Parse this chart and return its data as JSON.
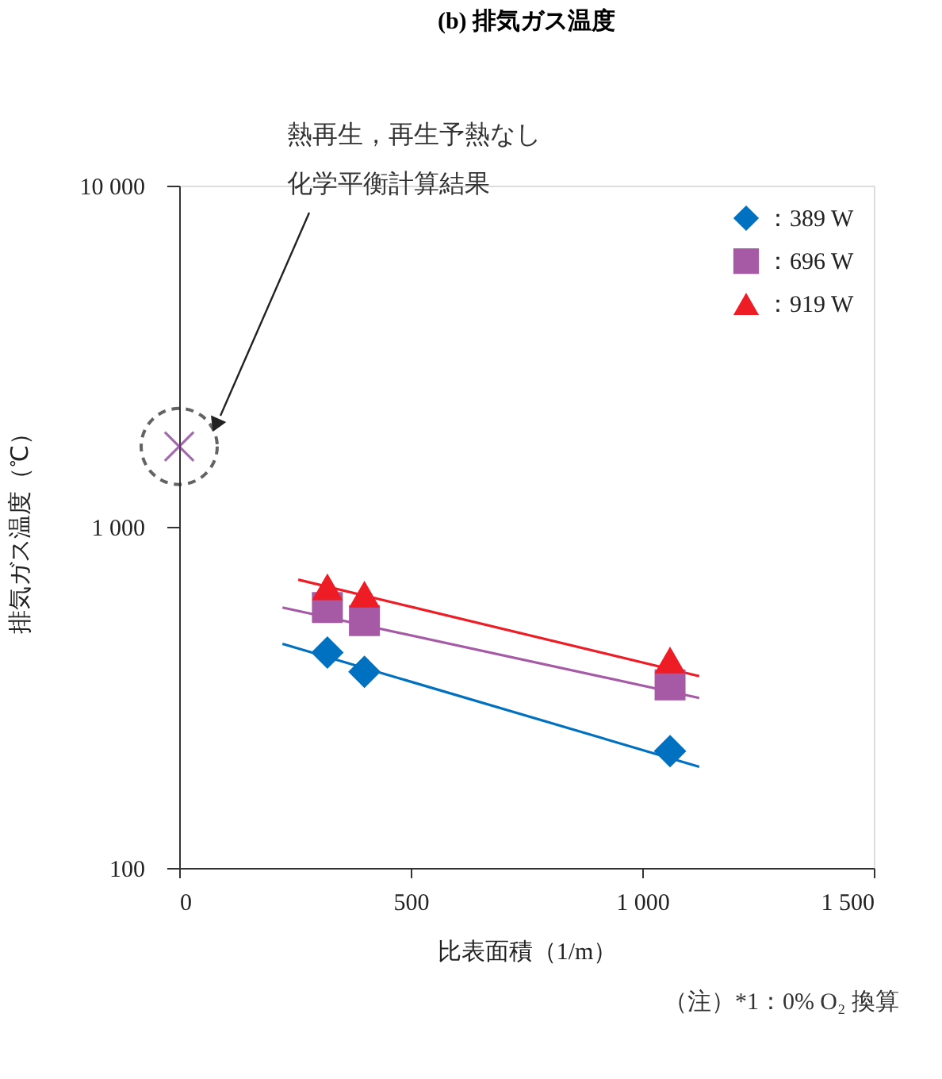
{
  "chart_data": {
    "type": "scatter",
    "title": "(b) 排気ガス温度",
    "xlabel": "比表面積（1/m）",
    "ylabel": "排気ガス温度（℃）",
    "log": "y",
    "xlim": [
      0,
      1500
    ],
    "xticks": [
      0,
      500,
      {
        "value": 1000,
        "label": "1 000"
      },
      {
        "value": 1500,
        "label": "1 500"
      }
    ],
    "ylim": [
      100,
      10000
    ],
    "yticks": [
      100,
      {
        "value": 1000,
        "label": "1 000"
      },
      {
        "value": 10000,
        "label": "10 000"
      }
    ],
    "grid": false,
    "legend": "top right",
    "series": [
      {
        "name": "：389 W",
        "color": "#0070c0",
        "marker": "diamond",
        "x": [
          320,
          400,
          1060
        ],
        "values": [
          428,
          376,
          220
        ]
      },
      {
        "name": "：696 W",
        "color": "#a65aa6",
        "marker": "square",
        "x": [
          320,
          400,
          1060
        ],
        "values": [
          580,
          531,
          344
        ]
      },
      {
        "name": "：919 W",
        "color": "#ee1c25",
        "marker": "triangle",
        "x": [
          320,
          400,
          1060
        ],
        "values": [
          667,
          635,
          407
        ]
      },
      {
        "type": "line",
        "color": "#0070c0",
        "x": [
          223,
          1123
        ],
        "values": [
          454,
          198
        ]
      },
      {
        "type": "line",
        "color": "#a65aa6",
        "x": [
          223,
          1123
        ],
        "values": [
          580,
          315
        ]
      },
      {
        "type": "line",
        "color": "#ee1c25",
        "x": [
          257,
          1123
        ],
        "values": [
          700,
          365
        ]
      },
      {
        "color": "#7b2d8b",
        "marker": "cross",
        "x": [
          0
        ],
        "values": [
          1720
        ]
      }
    ],
    "annotations": [
      "熱再生，再生予熱なし",
      "化学平衡計算結果",
      "（注）*1：0% O₂ 換算"
    ]
  }
}
